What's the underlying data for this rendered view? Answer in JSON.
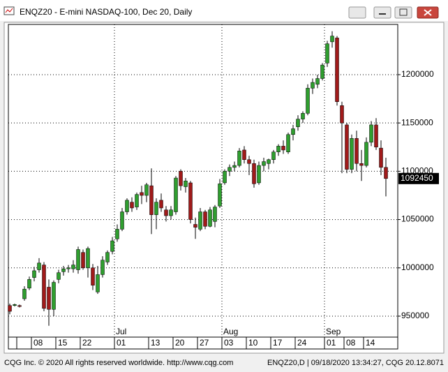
{
  "window": {
    "title": "ENQZ20 - E-mini NASDAQ-100, Dec 20, Daily",
    "footer_left": "CQG Inc. © 2020 All rights reserved worldwide. http://www.cqg.com",
    "footer_right": "ENQZ20,D | 09/18/2020 13:34:27, CQG 20.12.8071"
  },
  "chart_data": {
    "type": "candlestick",
    "open": [
      961000,
      961000,
      961000,
      968000,
      979000,
      990000,
      998000,
      1003000,
      980000,
      957000,
      988000,
      996000,
      999000,
      999000,
      998000,
      1016000,
      1000000,
      1000000,
      975000,
      993000,
      1006000,
      1017000,
      1030000,
      1040000,
      1058000,
      1068000,
      1063000,
      1078000,
      1075000,
      1085000,
      1055000,
      1070000,
      1060000,
      1054000,
      1058000,
      1100000,
      1084000,
      1088000,
      1045000,
      1040000,
      1058000,
      1043000,
      1048000,
      1064000,
      1088000,
      1100000,
      1104000,
      1106000,
      1122000,
      1112000,
      1108000,
      1088000,
      1106000,
      1108000,
      1112000,
      1120000,
      1126000,
      1120000,
      1138000,
      1146000,
      1154000,
      1160000,
      1186000,
      1190000,
      1196000,
      1212000,
      1234000,
      1238000,
      1168000,
      1148000,
      1102000,
      1134000,
      1108000,
      1106000,
      1130000,
      1148000,
      1124000,
      1104000
    ],
    "high": [
      963000,
      963000,
      962000,
      981000,
      991000,
      1001000,
      1010000,
      1006000,
      988000,
      987000,
      998000,
      1002000,
      1003000,
      1008000,
      1022000,
      1019000,
      1022000,
      1004000,
      1002000,
      1012000,
      1018000,
      1032000,
      1045000,
      1062000,
      1072000,
      1073000,
      1078000,
      1085000,
      1088000,
      1103000,
      1072000,
      1077000,
      1064000,
      1064000,
      1095000,
      1102000,
      1093000,
      1090000,
      1052000,
      1062000,
      1060000,
      1063000,
      1065000,
      1092000,
      1102000,
      1107000,
      1110000,
      1124000,
      1126000,
      1116000,
      1112000,
      1110000,
      1114000,
      1113000,
      1122000,
      1128000,
      1132000,
      1140000,
      1148000,
      1158000,
      1162000,
      1190000,
      1196000,
      1200000,
      1212000,
      1235000,
      1245000,
      1240000,
      1172000,
      1150000,
      1138000,
      1142000,
      1122000,
      1135000,
      1152000,
      1155000,
      1132000,
      1114000
    ],
    "low": [
      952000,
      960000,
      959000,
      966000,
      977000,
      986000,
      995000,
      955000,
      940000,
      950000,
      984000,
      992000,
      995000,
      995000,
      994000,
      998000,
      990000,
      977000,
      973000,
      990000,
      1003000,
      1014000,
      1027000,
      1038000,
      1055000,
      1058000,
      1060000,
      1066000,
      1068000,
      1035000,
      1040000,
      1058000,
      1048000,
      1050000,
      1055000,
      1080000,
      1078000,
      1046000,
      1030000,
      1038000,
      1040000,
      1042000,
      1042000,
      1062000,
      1086000,
      1095000,
      1100000,
      1104000,
      1108000,
      1096000,
      1083000,
      1086000,
      1100000,
      1102000,
      1108000,
      1116000,
      1118000,
      1118000,
      1132000,
      1142000,
      1150000,
      1158000,
      1180000,
      1186000,
      1194000,
      1208000,
      1228000,
      1168000,
      1098000,
      1098000,
      1098000,
      1100000,
      1090000,
      1104000,
      1126000,
      1122000,
      1096000,
      1074000
    ],
    "close": [
      955000,
      962000,
      960000,
      978000,
      988000,
      997000,
      1005000,
      958000,
      957000,
      985000,
      995000,
      999000,
      1000000,
      1003000,
      1019000,
      1000000,
      1020000,
      982000,
      993000,
      1008000,
      1016000,
      1028000,
      1040000,
      1058000,
      1070000,
      1062000,
      1076000,
      1075000,
      1086000,
      1055000,
      1068000,
      1062000,
      1054000,
      1060000,
      1093000,
      1085000,
      1090000,
      1050000,
      1042000,
      1058000,
      1043000,
      1060000,
      1063000,
      1087000,
      1100000,
      1104000,
      1106000,
      1121000,
      1112000,
      1108000,
      1087000,
      1106000,
      1110000,
      1112000,
      1120000,
      1126000,
      1122000,
      1138000,
      1144000,
      1154000,
      1160000,
      1186000,
      1192000,
      1196000,
      1210000,
      1232000,
      1240000,
      1172000,
      1150000,
      1102000,
      1134000,
      1108000,
      1106000,
      1130000,
      1148000,
      1125000,
      1104000,
      1092450
    ],
    "up_color": "#2f9e2f",
    "down_color": "#a01a1a",
    "ylim": [
      928300,
      1252000
    ],
    "yticks": [
      950000,
      1000000,
      1050000,
      1100000,
      1150000,
      1200000
    ],
    "xticks": [
      {
        "value": 5,
        "label": "08"
      },
      {
        "value": 10,
        "label": "15"
      },
      {
        "value": 15,
        "label": "22"
      },
      {
        "value": 22,
        "label": "01"
      },
      {
        "value": 29,
        "label": "13"
      },
      {
        "value": 34,
        "label": "20"
      },
      {
        "value": 39,
        "label": "27"
      },
      {
        "value": 44,
        "label": "03"
      },
      {
        "value": 49,
        "label": "10"
      },
      {
        "value": 54,
        "label": "17"
      },
      {
        "value": 59,
        "label": "24"
      },
      {
        "value": 65,
        "label": "01"
      },
      {
        "value": 69,
        "label": "08"
      },
      {
        "value": 73,
        "label": "14"
      }
    ],
    "month_labels": [
      {
        "value": 22,
        "label": "Jul"
      },
      {
        "value": 44,
        "label": "Aug"
      },
      {
        "value": 65,
        "label": "Sep"
      }
    ],
    "last_price": 1092450,
    "grid": true
  }
}
